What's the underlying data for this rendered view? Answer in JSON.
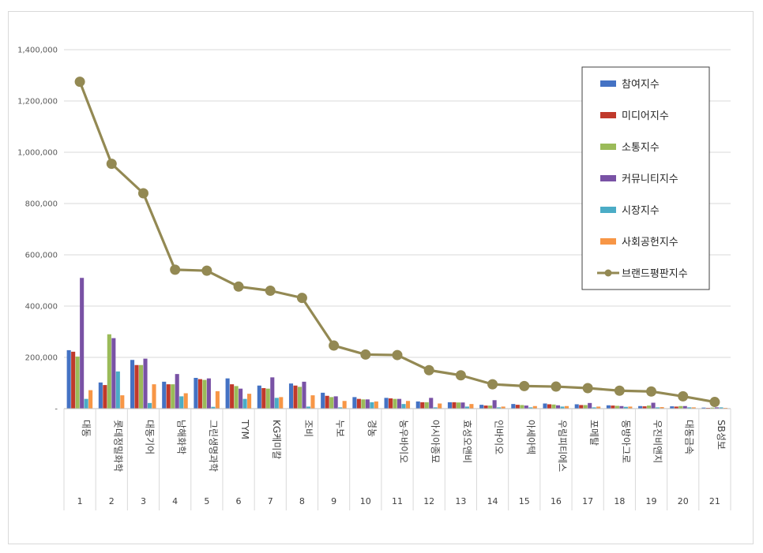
{
  "chart_data": {
    "type": "bar",
    "title": "",
    "xlabel": "",
    "ylabel": "",
    "ylim": [
      0,
      1400000
    ],
    "yticks": [
      0,
      200000,
      400000,
      600000,
      800000,
      1000000,
      1200000,
      1400000
    ],
    "ytick_labels": [
      "-",
      "200,000",
      "400,000",
      "600,000",
      "800,000",
      "1,000,000",
      "1,200,000",
      "1,400,000"
    ],
    "grid": "horizontal",
    "legend_position": "right",
    "categories": [
      "대동",
      "롯데정밀화학",
      "대동기어",
      "남해화학",
      "그린생명과학",
      "TYM",
      "KG케미칼",
      "조비",
      "누보",
      "경농",
      "농우바이오",
      "아시아종묘",
      "효성오앤비",
      "인바이오",
      "아세아텍",
      "우림피티에스",
      "포메탈",
      "동방아그로",
      "우진비앤지",
      "대동금속",
      "SB성보"
    ],
    "ranks": [
      "1",
      "2",
      "3",
      "4",
      "5",
      "6",
      "7",
      "8",
      "9",
      "10",
      "11",
      "12",
      "13",
      "14",
      "15",
      "16",
      "17",
      "18",
      "19",
      "20",
      "21"
    ],
    "series": [
      {
        "name": "참여지수",
        "type": "bar",
        "color": "#4472c4",
        "values": [
          228000,
          102000,
          190000,
          105000,
          120000,
          118000,
          90000,
          98000,
          62000,
          45000,
          42000,
          28000,
          25000,
          15000,
          18000,
          20000,
          17000,
          13000,
          10000,
          9000,
          4000
        ]
      },
      {
        "name": "미디어지수",
        "type": "bar",
        "color": "#c0392b",
        "values": [
          222000,
          92000,
          170000,
          95000,
          115000,
          95000,
          80000,
          90000,
          50000,
          38000,
          40000,
          25000,
          25000,
          12000,
          15000,
          17000,
          14000,
          12000,
          9000,
          8000,
          3000
        ]
      },
      {
        "name": "소통지수",
        "type": "bar",
        "color": "#9bbb59",
        "values": [
          203000,
          290000,
          170000,
          95000,
          112000,
          88000,
          78000,
          85000,
          45000,
          36000,
          38000,
          25000,
          24000,
          12000,
          14000,
          16000,
          14000,
          11000,
          12000,
          10000,
          4000
        ]
      },
      {
        "name": "커뮤니티지수",
        "type": "bar",
        "color": "#7952a5",
        "values": [
          510000,
          275000,
          195000,
          135000,
          118000,
          78000,
          122000,
          105000,
          48000,
          36000,
          38000,
          42000,
          24000,
          33000,
          12000,
          13000,
          22000,
          10000,
          23000,
          10000,
          5000
        ]
      },
      {
        "name": "시장지수",
        "type": "bar",
        "color": "#4bacc6",
        "values": [
          38000,
          145000,
          22000,
          48000,
          7000,
          38000,
          42000,
          8000,
          5000,
          25000,
          18000,
          5000,
          8000,
          5000,
          5000,
          8000,
          5000,
          7000,
          5000,
          5000,
          5000
        ]
      },
      {
        "name": "사회공헌지수",
        "type": "bar",
        "color": "#f79646",
        "values": [
          72000,
          52000,
          95000,
          60000,
          68000,
          58000,
          45000,
          52000,
          30000,
          28000,
          30000,
          20000,
          18000,
          8000,
          10000,
          10000,
          8000,
          8000,
          6000,
          5000,
          3000
        ]
      },
      {
        "name": "브랜드평판지수",
        "type": "line",
        "color": "#938953",
        "values": [
          1275000,
          955000,
          840000,
          542000,
          538000,
          476000,
          460000,
          432000,
          246000,
          211000,
          209000,
          150000,
          130000,
          95000,
          88000,
          86000,
          80000,
          70000,
          67000,
          48000,
          26000
        ]
      }
    ]
  }
}
